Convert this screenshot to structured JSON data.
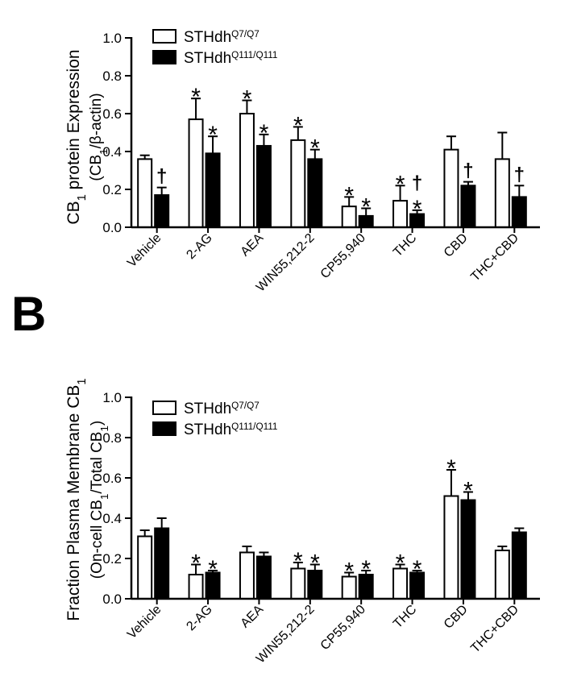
{
  "panel_b_letter": "B",
  "chart_data": [
    {
      "type": "bar",
      "ylabel": "CB1 protein Expression (CB1/β-actin)",
      "ylim": [
        0,
        1.0
      ],
      "yticks": [
        "0.0",
        "0.2",
        "0.4",
        "0.6",
        "0.8",
        "1.0"
      ],
      "categories": [
        "Vehicle",
        "2-AG",
        "AEA",
        "WIN55,212-2",
        "CP55,940",
        "THC",
        "CBD",
        "THC+CBD"
      ],
      "series": [
        {
          "name": "STHdh",
          "sup": "Q7/Q7",
          "fill": "#ffffff",
          "values": [
            0.36,
            0.57,
            0.6,
            0.46,
            0.11,
            0.14,
            0.41,
            0.36
          ],
          "errors": [
            0.02,
            0.11,
            0.07,
            0.07,
            0.05,
            0.08,
            0.07,
            0.14
          ],
          "marks": [
            "",
            "*",
            "*",
            "*",
            "*",
            "*",
            "",
            ""
          ]
        },
        {
          "name": "STHdh",
          "sup": "Q111/Q111",
          "fill": "#000000",
          "values": [
            0.17,
            0.39,
            0.43,
            0.36,
            0.06,
            0.07,
            0.22,
            0.16
          ],
          "errors": [
            0.04,
            0.09,
            0.06,
            0.05,
            0.04,
            0.02,
            0.02,
            0.06
          ],
          "marks": [
            "†",
            "*",
            "*",
            "*",
            "*",
            "†*",
            "†",
            "†"
          ]
        }
      ],
      "legend_position": "top-left"
    },
    {
      "type": "bar",
      "ylabel": "Fraction Plasma Membrane CB1 (On-cell CB1/Total CB1)",
      "ylim": [
        0,
        1.0
      ],
      "yticks": [
        "0.0",
        "0.2",
        "0.4",
        "0.6",
        "0.8",
        "1.0"
      ],
      "categories": [
        "Vehicle",
        "2-AG",
        "AEA",
        "WIN55,212-2",
        "CP55,940",
        "THC",
        "CBD",
        "THC+CBD"
      ],
      "series": [
        {
          "name": "STHdh",
          "sup": "Q7/Q7",
          "fill": "#ffffff",
          "values": [
            0.31,
            0.12,
            0.23,
            0.15,
            0.11,
            0.15,
            0.51,
            0.24
          ],
          "errors": [
            0.03,
            0.05,
            0.03,
            0.03,
            0.02,
            0.02,
            0.13,
            0.02
          ],
          "marks": [
            "",
            "*",
            "",
            "*",
            "*",
            "*",
            "*",
            ""
          ]
        },
        {
          "name": "STHdh",
          "sup": "Q111/Q111",
          "fill": "#000000",
          "values": [
            0.35,
            0.13,
            0.21,
            0.14,
            0.12,
            0.13,
            0.49,
            0.33
          ],
          "errors": [
            0.05,
            0.01,
            0.02,
            0.03,
            0.02,
            0.01,
            0.04,
            0.02
          ],
          "marks": [
            "",
            "*",
            "",
            "*",
            "*",
            "*",
            "*",
            ""
          ]
        }
      ],
      "legend_position": "top-left"
    }
  ]
}
